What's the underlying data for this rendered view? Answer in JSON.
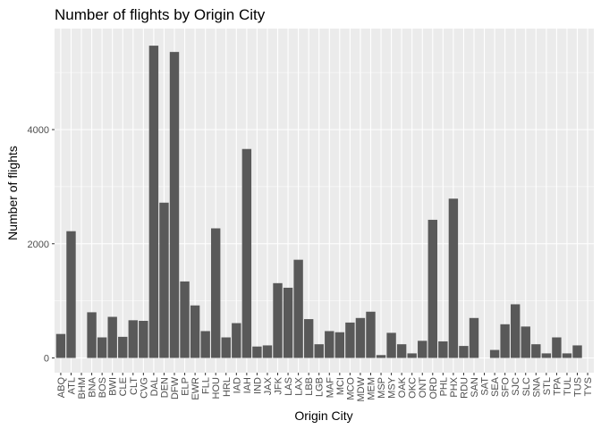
{
  "chart_data": {
    "type": "bar",
    "title": "Number of flights by Origin City",
    "xlabel": "Origin City",
    "ylabel": "Number of flights",
    "ylim": [
      0,
      5800
    ],
    "yticks": [
      0,
      2000,
      4000
    ],
    "grid": true,
    "bar_color": "#595959",
    "panel_color": "#ebebeb",
    "categories": [
      "ABQ",
      "ATL",
      "BHM",
      "BNA",
      "BOS",
      "BWI",
      "CLE",
      "CLT",
      "CVG",
      "DAL",
      "DEN",
      "DFW",
      "ELP",
      "EWR",
      "FLL",
      "HOU",
      "HRL",
      "IAD",
      "IAH",
      "IND",
      "JAX",
      "JFK",
      "LAS",
      "LAX",
      "LBB",
      "LGB",
      "MAF",
      "MCI",
      "MCO",
      "MDW",
      "MEM",
      "MSP",
      "MSY",
      "OAK",
      "OKC",
      "ONT",
      "ORD",
      "PHL",
      "PHX",
      "RDU",
      "SAN",
      "SAT",
      "SEA",
      "SFO",
      "SJC",
      "SLC",
      "SNA",
      "STL",
      "TPA",
      "TUL",
      "TUS",
      "TYS"
    ],
    "values": [
      420,
      2220,
      0,
      800,
      360,
      720,
      370,
      660,
      650,
      5470,
      2720,
      5360,
      1340,
      920,
      470,
      2270,
      360,
      610,
      3660,
      200,
      220,
      1310,
      1230,
      1720,
      680,
      240,
      470,
      450,
      620,
      700,
      810,
      50,
      440,
      240,
      80,
      300,
      2420,
      290,
      2790,
      210,
      700,
      0,
      140,
      590,
      940,
      550,
      240,
      80,
      360,
      80,
      220,
      0
    ]
  }
}
